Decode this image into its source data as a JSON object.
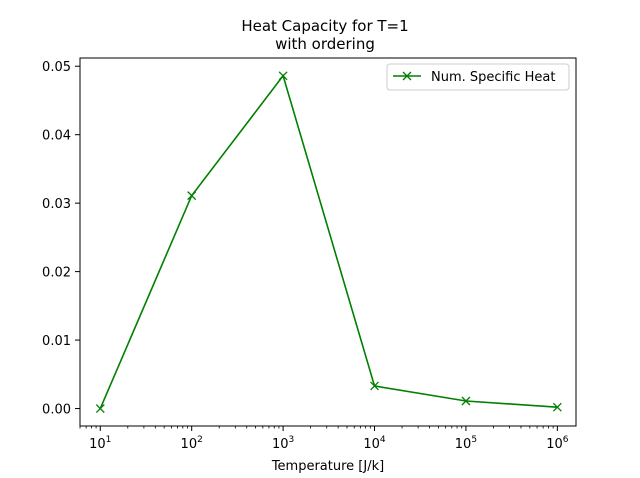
{
  "chart_data": {
    "type": "line",
    "title": "Heat Capacity for T=1",
    "subtitle": "with ordering",
    "xlabel": "Temperature [J/k]",
    "ylabel": "",
    "x_scale": "log",
    "xlim": [
      6,
      1600000
    ],
    "ylim": [
      -0.00255,
      0.0512
    ],
    "x_ticks": [
      10,
      100,
      1000,
      10000,
      100000,
      1000000
    ],
    "x_tick_labels": [
      {
        "base": "10",
        "exp": "1"
      },
      {
        "base": "10",
        "exp": "2"
      },
      {
        "base": "10",
        "exp": "3"
      },
      {
        "base": "10",
        "exp": "4"
      },
      {
        "base": "10",
        "exp": "5"
      },
      {
        "base": "10",
        "exp": "6"
      }
    ],
    "y_ticks": [
      0.0,
      0.01,
      0.02,
      0.03,
      0.04,
      0.05
    ],
    "y_tick_labels": [
      "0.00",
      "0.01",
      "0.02",
      "0.03",
      "0.04",
      "0.05"
    ],
    "grid": false,
    "legend_position": "top-right",
    "series": [
      {
        "name": "Num. Specific Heat",
        "color": "#008000",
        "marker": "x",
        "x": [
          10,
          100,
          1000,
          10000,
          100000,
          1000000
        ],
        "y": [
          0.0,
          0.0311,
          0.0486,
          0.0033,
          0.0011,
          0.0002
        ]
      }
    ]
  }
}
